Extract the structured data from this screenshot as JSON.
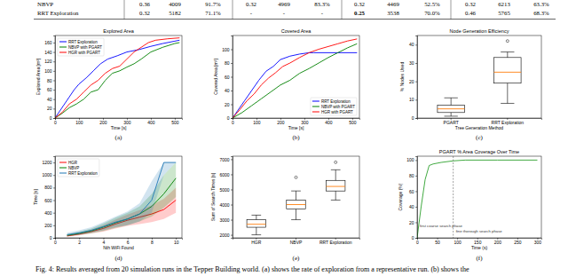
{
  "table": {
    "rows": [
      [
        "NBVP",
        "0.36",
        "4009",
        "91.7%",
        "0.32",
        "4969",
        "83.3%",
        "0.32",
        "4469",
        "52.5%",
        "0.32",
        "6213",
        "63.3%"
      ],
      [
        "RRT Exploration",
        "0.32",
        "5182",
        "71.1%",
        "-",
        "-",
        "-",
        {
          "text": "0.25",
          "bold": true
        },
        "3538",
        "70.0%",
        "0.46",
        "5765",
        "68.3%"
      ]
    ]
  },
  "chart_data": [
    {
      "type": "line",
      "label": "(a)",
      "title": "Explored Area",
      "x_label": "Time [s]",
      "y_label": "Explored Area [m²]",
      "xlim": [
        0,
        530
      ],
      "xticks": [
        0,
        100,
        200,
        300,
        400,
        500
      ],
      "ylim": [
        0,
        175
      ],
      "yticks": [
        0,
        20,
        40,
        60,
        80,
        100,
        120,
        140,
        160
      ],
      "legend": "upper left",
      "series": [
        {
          "name": "RRT Exploration",
          "color": "blue",
          "x": [
            0,
            20,
            40,
            60,
            80,
            100,
            130,
            160,
            190,
            220,
            260,
            300,
            350,
            400,
            450,
            500,
            520
          ],
          "values": [
            0,
            15,
            30,
            45,
            60,
            72,
            85,
            100,
            115,
            125,
            132,
            140,
            145,
            152,
            158,
            163,
            165
          ]
        },
        {
          "name": "NBVP with PGART",
          "color": "green",
          "x": [
            0,
            30,
            60,
            90,
            120,
            150,
            180,
            210,
            240,
            270,
            300,
            330,
            360,
            400,
            450,
            500,
            520
          ],
          "values": [
            0,
            10,
            22,
            30,
            40,
            55,
            60,
            80,
            95,
            100,
            108,
            115,
            125,
            140,
            150,
            158,
            160
          ]
        },
        {
          "name": "HGR with PGART",
          "color": "red",
          "x": [
            0,
            30,
            60,
            90,
            120,
            150,
            180,
            210,
            240,
            270,
            300,
            330,
            360,
            390,
            420,
            470,
            520
          ],
          "values": [
            0,
            12,
            30,
            40,
            55,
            70,
            80,
            95,
            105,
            110,
            125,
            140,
            150,
            160,
            165,
            168,
            170
          ]
        }
      ]
    },
    {
      "type": "line",
      "label": "(b)",
      "title": "Covered Area",
      "x_label": "Time [s]",
      "y_label": "Covered Area [m²]",
      "xlim": [
        0,
        530
      ],
      "xticks": [
        0,
        100,
        200,
        300,
        400,
        500
      ],
      "ylim": [
        0,
        120
      ],
      "yticks": [
        0,
        20,
        40,
        60,
        80,
        100
      ],
      "legend": "lower right",
      "series": [
        {
          "name": "RRT Exploration",
          "color": "blue",
          "x": [
            0,
            20,
            50,
            80,
            110,
            140,
            170,
            200,
            240,
            280,
            320,
            340,
            520
          ],
          "values": [
            0,
            10,
            25,
            40,
            55,
            68,
            75,
            85,
            90,
            93,
            95,
            95,
            95
          ]
        },
        {
          "name": "NBVP with PGART",
          "color": "green",
          "x": [
            0,
            40,
            80,
            120,
            160,
            200,
            240,
            280,
            320,
            360,
            400,
            440,
            480,
            520
          ],
          "values": [
            0,
            8,
            18,
            28,
            38,
            48,
            55,
            65,
            72,
            80,
            88,
            95,
            102,
            108
          ]
        },
        {
          "name": "HGR with PGART",
          "color": "red",
          "x": [
            0,
            30,
            60,
            90,
            120,
            150,
            180,
            210,
            240,
            280,
            320,
            360,
            400,
            440,
            480,
            520
          ],
          "values": [
            0,
            12,
            25,
            35,
            48,
            58,
            66,
            75,
            80,
            88,
            95,
            100,
            104,
            108,
            112,
            115
          ]
        }
      ]
    },
    {
      "type": "box",
      "label": "(c)",
      "title": "Node Generation Efficiency",
      "x_label": "Tree Generation Method",
      "y_label": "% Nodes Used",
      "categories": [
        "PGART",
        "RRT Exploration"
      ],
      "color": "#ff7f0e",
      "ylim": [
        0,
        45
      ],
      "yticks": [
        0,
        10,
        20,
        30,
        40
      ],
      "boxes": [
        {
          "whislo": 1,
          "q1": 3,
          "median": 5,
          "q3": 7,
          "whishi": 11,
          "fliers": []
        },
        {
          "whislo": 8,
          "q1": 19,
          "median": 25,
          "q3": 33,
          "whishi": 36,
          "fliers": [
            42
          ]
        }
      ]
    },
    {
      "type": "line",
      "label": "(d)",
      "x_label": "Nth WiFi Found",
      "y_label": "Time [s]",
      "xlim": [
        0,
        10.5
      ],
      "xticks": [
        0,
        2,
        4,
        6,
        8,
        10
      ],
      "ylim": [
        0,
        1300
      ],
      "yticks": [
        0,
        200,
        400,
        600,
        800,
        1000,
        1200
      ],
      "legend": "upper left",
      "x": [
        1,
        2,
        3,
        4,
        5,
        6,
        7,
        8,
        9,
        10
      ],
      "series": [
        {
          "name": "HGR",
          "color": "red",
          "values": [
            30,
            60,
            100,
            150,
            220,
            280,
            330,
            380,
            450,
            600
          ],
          "lower": [
            20,
            40,
            70,
            100,
            150,
            190,
            220,
            250,
            300,
            400
          ],
          "upper": [
            45,
            85,
            130,
            200,
            290,
            370,
            440,
            520,
            620,
            800
          ]
        },
        {
          "name": "NBVP",
          "color": "green",
          "values": [
            40,
            70,
            110,
            170,
            240,
            300,
            380,
            500,
            700,
            950
          ],
          "lower": [
            25,
            45,
            70,
            110,
            160,
            200,
            260,
            340,
            480,
            650
          ],
          "upper": [
            60,
            100,
            150,
            230,
            320,
            400,
            500,
            700,
            1000,
            1200
          ]
        },
        {
          "name": "RRT Exploration",
          "color": "#1f77b4",
          "values": [
            50,
            80,
            120,
            180,
            250,
            300,
            380,
            600,
            1200,
            1200
          ],
          "lower": [
            30,
            50,
            80,
            120,
            170,
            200,
            260,
            400,
            1000,
            1200
          ],
          "upper": [
            80,
            120,
            170,
            250,
            340,
            420,
            550,
            900,
            1200,
            1200
          ]
        }
      ]
    },
    {
      "type": "box",
      "label": "(e)",
      "y_label": "Sum of Search Times [s]",
      "categories": [
        "HGR",
        "NBVP",
        "RRT Exploration"
      ],
      "color": "#ff7f0e",
      "ylim": [
        1800,
        7200
      ],
      "yticks": [
        2000,
        3000,
        4000,
        5000,
        6000,
        7000
      ],
      "boxes": [
        {
          "whislo": 2000,
          "q1": 2500,
          "median": 2700,
          "q3": 3000,
          "whishi": 3300,
          "fliers": []
        },
        {
          "whislo": 3000,
          "q1": 3700,
          "median": 4000,
          "q3": 4300,
          "whishi": 4900,
          "fliers": [
            5800
          ]
        },
        {
          "whislo": 4300,
          "q1": 4900,
          "median": 5200,
          "q3": 5600,
          "whishi": 6300,
          "fliers": [
            6800
          ]
        }
      ]
    },
    {
      "type": "line",
      "label": "(f)",
      "title": "PGART % Area Coverage Over Time",
      "x_label": "Time (s)",
      "y_label": "Coverage (%)",
      "xlim": [
        0,
        310
      ],
      "xticks": [
        0,
        50,
        100,
        150,
        200,
        250,
        300
      ],
      "ylim": [
        0,
        105
      ],
      "yticks": [
        0,
        20,
        40,
        60,
        80,
        100
      ],
      "vline": 90,
      "annotations": [
        "first coarse search phase",
        "fine thorough search phase"
      ],
      "series": [
        {
          "color": "#2ca02c",
          "x": [
            0,
            10,
            20,
            30,
            40,
            60,
            90,
            120,
            200,
            300
          ],
          "values": [
            0,
            40,
            75,
            93,
            95,
            97,
            99,
            100,
            100,
            100
          ]
        }
      ]
    }
  ],
  "caption": "Fig. 4: Results averaged from 20 simulation runs in the Tepper Building world. (a) shows the rate of exploration from a representative run. (b) shows the"
}
